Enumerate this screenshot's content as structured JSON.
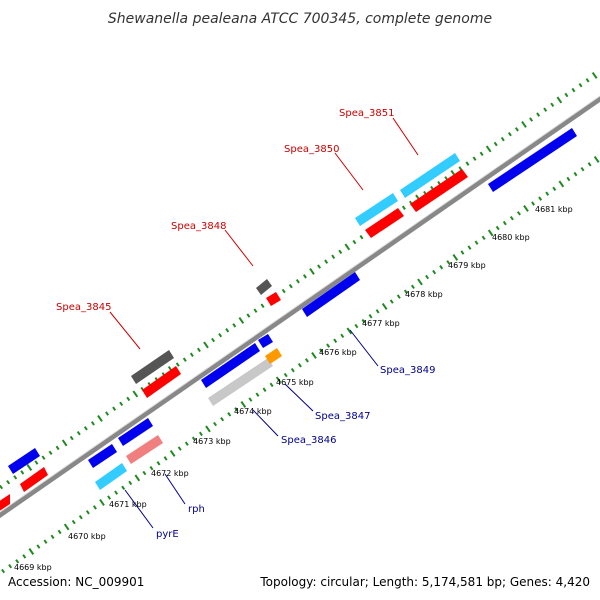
{
  "title": "Shewanella pealeana ATCC 700345, complete genome",
  "footer": {
    "accession": "Accession: NC_009901",
    "summary": "Topology: circular; Length: 5,174,581 bp; Genes: 4,420"
  },
  "colors": {
    "backbone": "#888888",
    "tick": "#1f8a1f",
    "label_top": "#cc0000",
    "label_bottom": "#00008b",
    "gene_red": "#ff0000",
    "gene_blue": "#0000ee",
    "gene_cyan": "#33ccff",
    "gene_gray": "#555555",
    "gene_lightgray": "#c8c8c8",
    "gene_pink": "#f08080",
    "gene_orange": "#ff9900"
  },
  "kbp_labels": [
    "4669 kbp",
    "4670 kbp",
    "4671 kbp",
    "4672 kbp",
    "4673 kbp",
    "4674 kbp",
    "4675 kbp",
    "4676 kbp",
    "4677 kbp",
    "4678 kbp",
    "4679 kbp",
    "4680 kbp",
    "4681 kbp"
  ],
  "gene_labels_top": [
    "Spea_3845",
    "Spea_3848",
    "Spea_3850",
    "Spea_3851"
  ],
  "gene_labels_bottom": [
    "pyrE",
    "rph",
    "Spea_3846",
    "Spea_3847",
    "Spea_3849"
  ]
}
